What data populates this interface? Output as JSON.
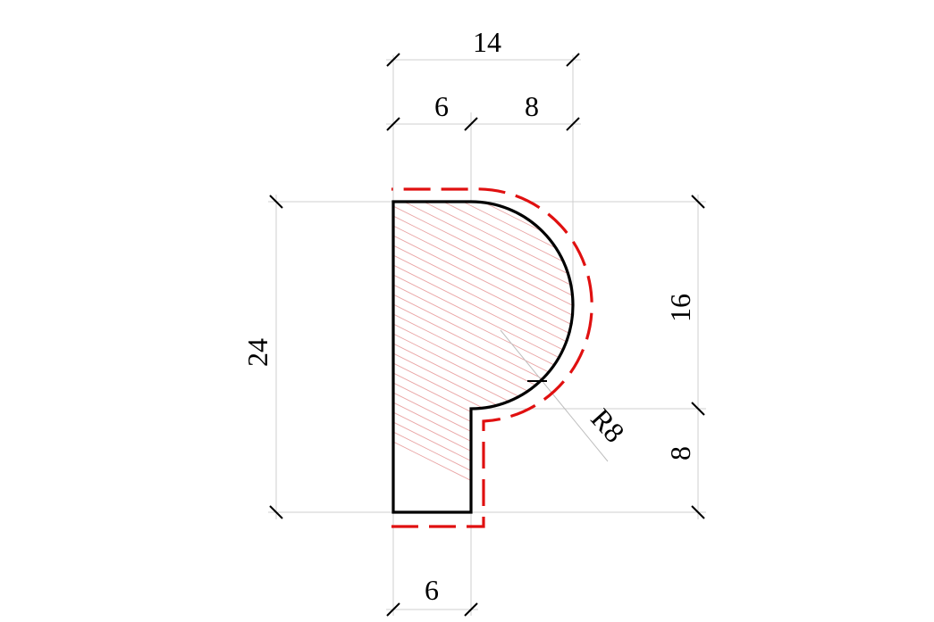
{
  "drawing": {
    "dimensions": {
      "overall_width": "14",
      "left_width": "6",
      "right_width": "8",
      "total_height": "24",
      "upper_height": "16",
      "lower_height": "8",
      "bottom_width": "6",
      "radius": "R8"
    },
    "colors": {
      "profile": "#000000",
      "offset": "#e01010",
      "hatch": "#e8a0a0",
      "dimension_lines": "#cfcfcf"
    }
  }
}
